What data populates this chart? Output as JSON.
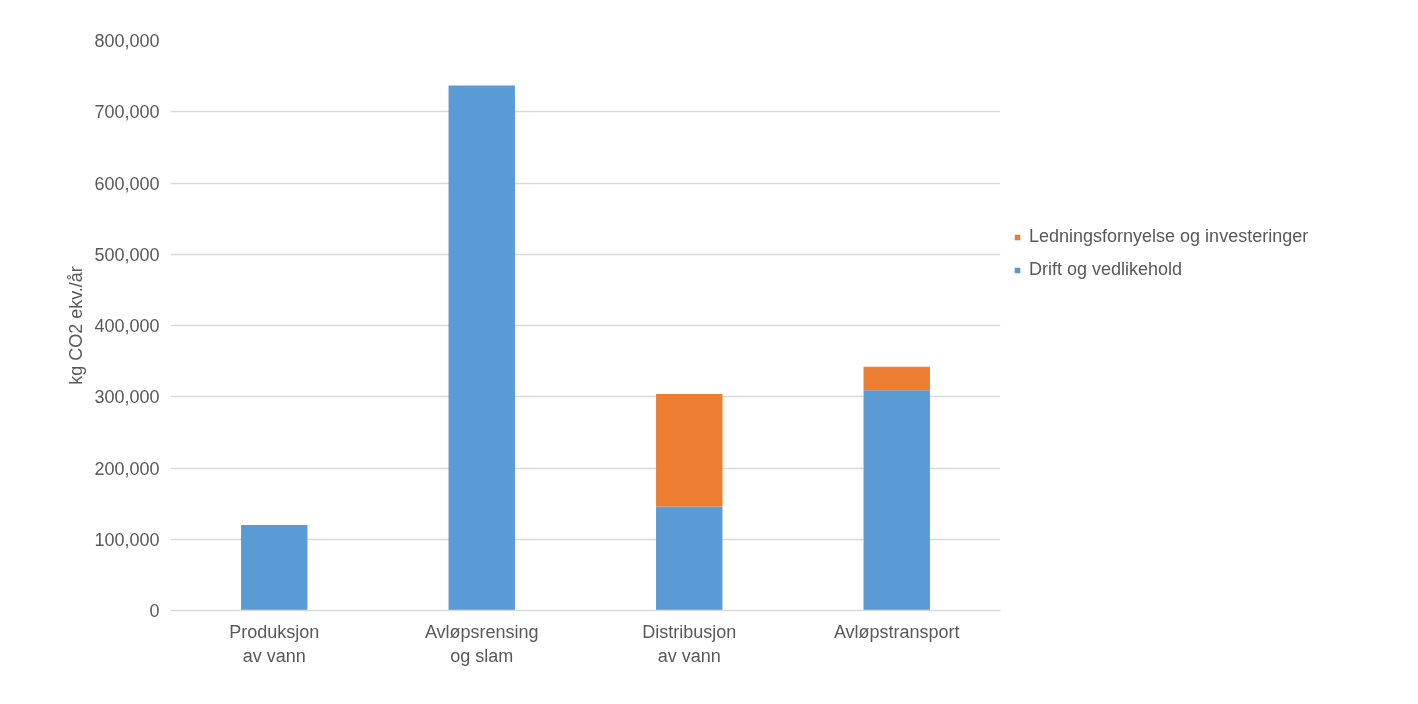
{
  "chart_data": {
    "type": "bar",
    "stacked": true,
    "ylabel": "kg CO2 ekv./år",
    "categories": [
      "Produksjon av vann",
      "Avløpsrensing og slam",
      "Distribusjon av vann",
      "Avløpstransport"
    ],
    "series": [
      {
        "name": "Drift og vedlikehold",
        "color": "#5b9bd5",
        "values": [
          120000,
          737000,
          146000,
          309000
        ]
      },
      {
        "name": "Ledningsfornyelse og investeringer",
        "color": "#ed7d31",
        "values": [
          null,
          null,
          158000,
          33000
        ]
      }
    ],
    "ylim": [
      0,
      800000
    ],
    "yticks": [
      0,
      {
        "value": 100000,
        "label": "100,000"
      },
      {
        "value": 200000,
        "label": "200,000"
      },
      {
        "value": 300000,
        "label": "300,000"
      },
      {
        "value": 400000,
        "label": "400,000"
      },
      {
        "value": 500000,
        "label": "500,000"
      },
      {
        "value": 600000,
        "label": "600,000"
      },
      {
        "value": 700000,
        "label": "700,000"
      },
      {
        "value": 800000,
        "label": "800,000"
      }
    ],
    "grid": "y",
    "legend": "right"
  }
}
